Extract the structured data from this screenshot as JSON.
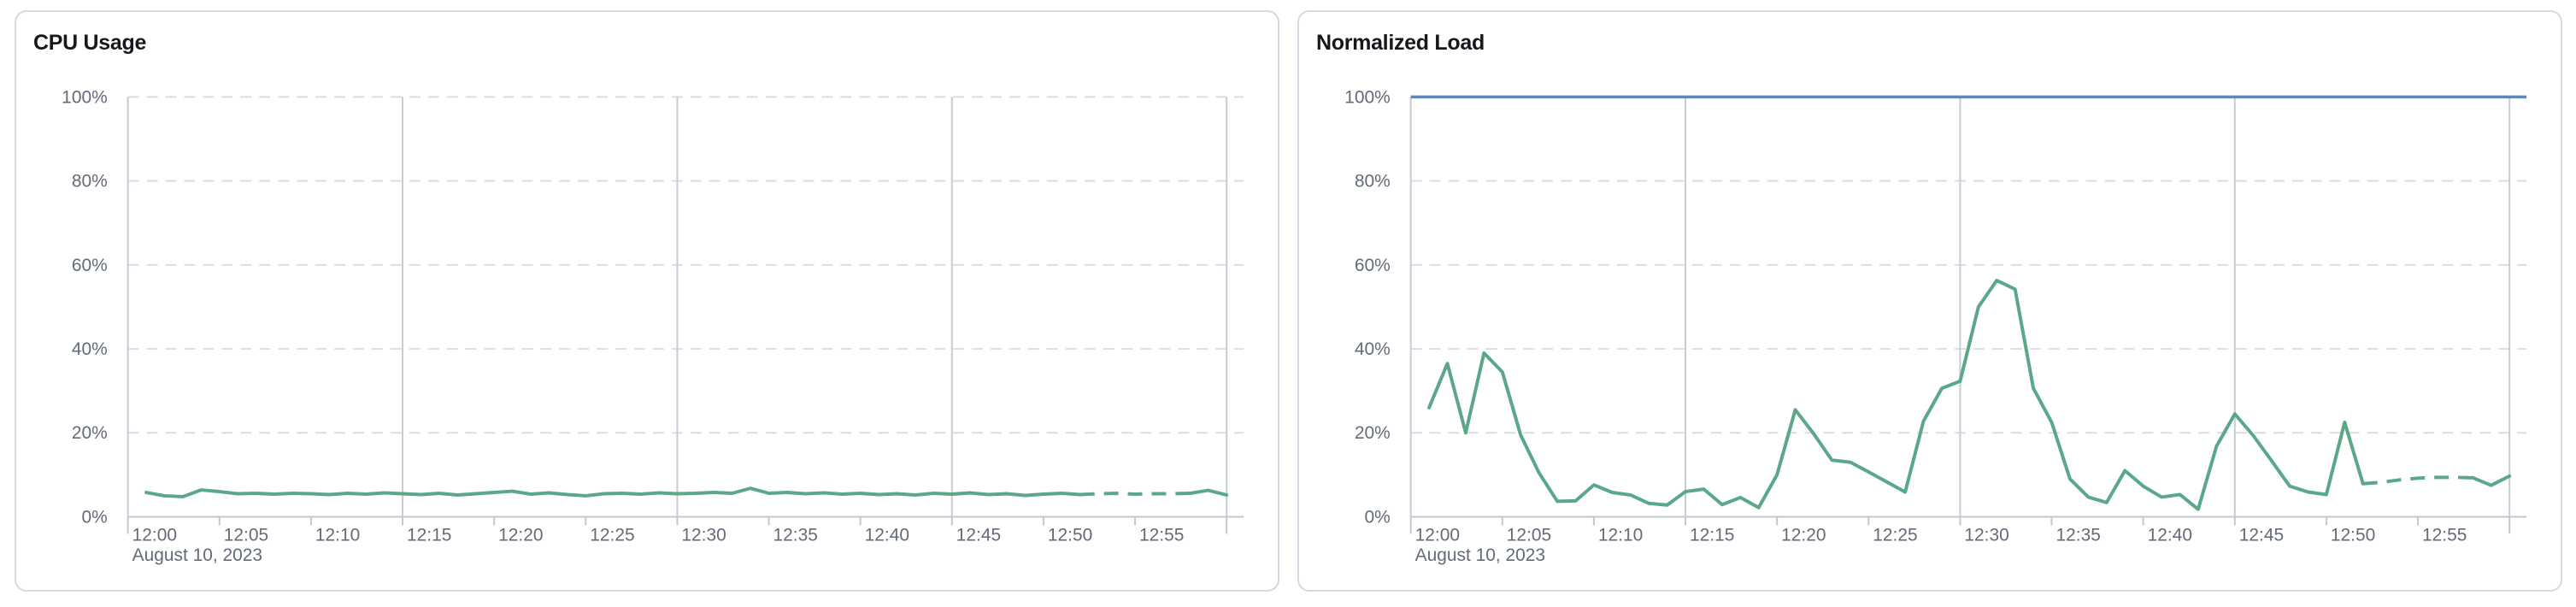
{
  "chart_data": [
    {
      "type": "line",
      "title": "CPU Usage",
      "x_date_label": "August 10, 2023",
      "x_tick_labels": [
        "12:00",
        "12:05",
        "12:10",
        "12:15",
        "12:20",
        "12:25",
        "12:30",
        "12:35",
        "12:40",
        "12:45",
        "12:50",
        "12:55"
      ],
      "x_tick_interval_minutes": 5,
      "xlim_minutes": [
        0,
        60
      ],
      "y_tick_labels": [
        "0%",
        "20%",
        "40%",
        "60%",
        "80%",
        "100%"
      ],
      "ylim": [
        0,
        100
      ],
      "major_vertical_gridlines_minutes": [
        15,
        30,
        45,
        60
      ],
      "grid": "horizontal-dashed",
      "legend": "none",
      "series": [
        {
          "name": "cpu-usage",
          "color": "#5aa887",
          "x_start_minute": 1,
          "x_step_minutes": 1,
          "dash_start_minute": 52,
          "dash_end_minute": 58,
          "values": [
            5.8,
            5.0,
            4.8,
            6.4,
            6.0,
            5.5,
            5.6,
            5.4,
            5.6,
            5.5,
            5.3,
            5.6,
            5.4,
            5.7,
            5.5,
            5.3,
            5.6,
            5.2,
            5.5,
            5.8,
            6.1,
            5.4,
            5.7,
            5.3,
            5.0,
            5.5,
            5.6,
            5.4,
            5.7,
            5.5,
            5.6,
            5.8,
            5.6,
            6.8,
            5.6,
            5.8,
            5.5,
            5.7,
            5.4,
            5.6,
            5.3,
            5.5,
            5.2,
            5.6,
            5.4,
            5.7,
            5.3,
            5.5,
            5.1,
            5.4,
            5.6,
            5.3,
            5.5,
            5.6,
            5.4,
            5.5,
            5.5,
            5.6,
            6.3,
            5.2
          ]
        }
      ]
    },
    {
      "type": "line",
      "title": "Normalized Load",
      "x_date_label": "August 10, 2023",
      "x_tick_labels": [
        "12:00",
        "12:05",
        "12:10",
        "12:15",
        "12:20",
        "12:25",
        "12:30",
        "12:35",
        "12:40",
        "12:45",
        "12:50",
        "12:55"
      ],
      "x_tick_interval_minutes": 5,
      "xlim_minutes": [
        0,
        60
      ],
      "y_tick_labels": [
        "0%",
        "20%",
        "40%",
        "60%",
        "80%",
        "100%"
      ],
      "ylim": [
        0,
        100
      ],
      "major_vertical_gridlines_minutes": [
        15,
        30,
        45,
        60
      ],
      "grid": "horizontal-dashed",
      "legend": "none",
      "series": [
        {
          "name": "load-limit",
          "color": "#5f87b9",
          "constant_value": 100
        },
        {
          "name": "normalized-load",
          "color": "#5aa887",
          "x_start_minute": 1,
          "x_step_minutes": 1,
          "dash_start_minute": 52,
          "dash_end_minute": 58,
          "values": [
            26,
            36.5,
            20,
            39,
            34.5,
            19.5,
            10.5,
            3.7,
            3.8,
            7.6,
            5.8,
            5.2,
            3.2,
            2.8,
            6.0,
            6.6,
            2.9,
            4.6,
            2.2,
            10,
            25.5,
            19.8,
            13.5,
            13.0,
            10.7,
            8.3,
            5.9,
            22.8,
            30.6,
            32.3,
            50,
            56.3,
            54.2,
            30.6,
            22.5,
            9.0,
            4.7,
            3.4,
            11.0,
            7.3,
            4.7,
            5.3,
            1.8,
            16.8,
            24.5,
            19.4,
            13.4,
            7.3,
            5.9,
            5.3,
            22.5,
            7.9,
            8.2,
            8.8,
            9.2,
            9.4,
            9.4,
            9.3,
            7.5,
            9.7
          ]
        }
      ]
    }
  ],
  "colors": {
    "series_green": "#5aa887",
    "series_blue": "#5f87b9",
    "grid_dashed": "#d9dde6",
    "grid_solid": "#c6cbd4",
    "tick_label": "#636a78",
    "title": "#15181d",
    "card_border": "#d3dae6",
    "background": "#ffffff"
  }
}
